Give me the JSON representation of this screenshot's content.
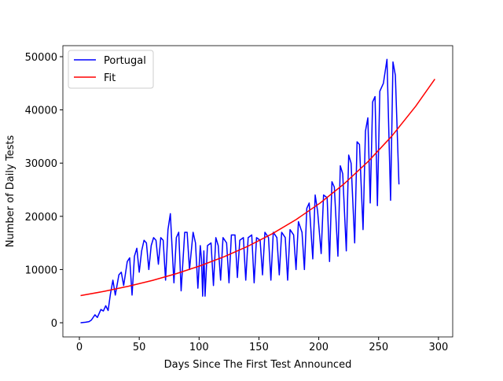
{
  "chart_data": {
    "type": "line",
    "x_label": "Days Since The First Test Announced",
    "y_label": "Number of Daily Tests",
    "xlim": [
      -13.8,
      311.9
    ],
    "ylim": [
      -2660,
      52070
    ],
    "xticks": [
      0,
      50,
      100,
      150,
      200,
      250,
      300
    ],
    "yticks": [
      0,
      10000,
      20000,
      30000,
      40000,
      50000
    ],
    "legend": "upper left",
    "series": [
      {
        "name": "Portugal",
        "color": "#0000ff",
        "x": [
          1,
          5,
          8,
          10,
          13,
          15,
          18,
          20,
          22,
          24,
          26,
          28,
          30,
          33,
          35,
          37,
          40,
          42,
          44,
          46,
          48,
          50,
          52,
          54,
          56,
          58,
          60,
          62,
          64,
          66,
          68,
          70,
          72,
          74,
          76,
          77,
          79,
          81,
          83,
          85,
          88,
          90,
          92,
          95,
          97,
          99,
          101,
          102,
          103,
          104,
          105,
          107,
          110,
          112,
          114,
          116,
          118,
          120,
          123,
          125,
          127,
          130,
          132,
          134,
          137,
          139,
          141,
          144,
          146,
          148,
          151,
          153,
          155,
          158,
          160,
          162,
          165,
          167,
          169,
          172,
          174,
          176,
          179,
          181,
          183,
          186,
          188,
          190,
          192,
          195,
          197,
          199,
          202,
          204,
          207,
          209,
          211,
          213,
          216,
          218,
          220,
          223,
          225,
          227,
          230,
          232,
          234,
          237,
          239,
          241,
          243,
          245,
          247,
          249,
          251,
          254,
          257,
          260,
          262,
          264,
          267
        ],
        "values": [
          0,
          100,
          200,
          500,
          1500,
          1000,
          2500,
          2200,
          3200,
          2300,
          5500,
          8000,
          5200,
          9000,
          9500,
          7000,
          11500,
          12200,
          5200,
          12500,
          14000,
          9500,
          13500,
          15500,
          15000,
          10000,
          14500,
          16000,
          15500,
          11000,
          16000,
          15500,
          8000,
          17500,
          20500,
          16000,
          7500,
          16000,
          17000,
          6000,
          17000,
          17000,
          10000,
          17000,
          15000,
          6500,
          14500,
          12000,
          5000,
          13500,
          5000,
          14500,
          15000,
          7000,
          16000,
          14500,
          8000,
          16000,
          15000,
          7500,
          16500,
          16500,
          8500,
          15500,
          16000,
          8000,
          16000,
          16500,
          7500,
          16000,
          15500,
          9000,
          17000,
          16000,
          8000,
          17000,
          16000,
          9000,
          17000,
          16000,
          8000,
          17500,
          16500,
          10000,
          19000,
          17000,
          10000,
          21500,
          22500,
          12000,
          24000,
          21000,
          13000,
          24000,
          23500,
          11500,
          26500,
          25500,
          12500,
          29500,
          28000,
          13500,
          31500,
          30000,
          15000,
          34000,
          33500,
          17500,
          36000,
          38500,
          22500,
          41500,
          42500,
          22000,
          43500,
          45000,
          49500,
          23000,
          49000,
          46500,
          26000
        ]
      },
      {
        "name": "Fit",
        "color": "#ff0000",
        "x": [
          1,
          21,
          41,
          61,
          81,
          101,
          121,
          141,
          161,
          181,
          201,
          221,
          241,
          261,
          281,
          297
        ],
        "values": [
          5100,
          5917,
          6861,
          7958,
          9230,
          10707,
          12419,
          14405,
          16710,
          19380,
          22477,
          26075,
          30243,
          35070,
          40690,
          45800
        ]
      }
    ]
  }
}
